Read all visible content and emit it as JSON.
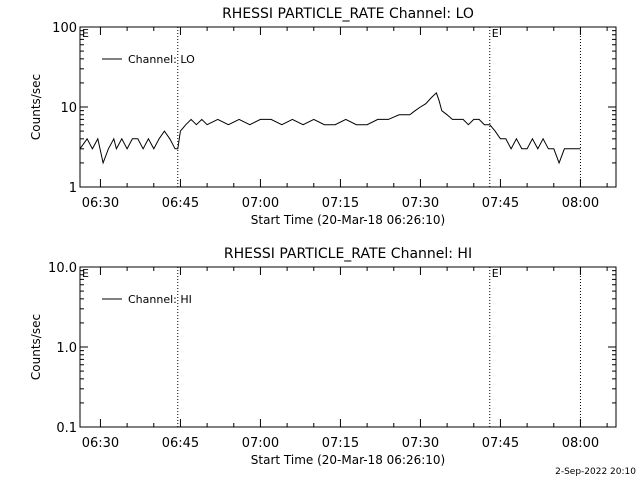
{
  "footer_text": "2-Sep-2022 20:10",
  "chart_data": [
    {
      "type": "line",
      "title": "RHESSI PARTICLE_RATE Channel: LO",
      "xlabel": "Start Time (20-Mar-18 06:26:10)",
      "ylabel": "Counts/sec",
      "yscale": "log",
      "ylim": [
        1,
        100
      ],
      "y_ticks": [
        "1",
        "10",
        "100"
      ],
      "xlim": [
        "06:26:10",
        "08:06:40"
      ],
      "x_ticks": [
        "06:30",
        "06:45",
        "07:00",
        "07:15",
        "07:30",
        "07:45",
        "08:00"
      ],
      "markers": [
        {
          "label": "E",
          "x": "06:26:10"
        },
        {
          "label": "E",
          "x": "07:43:00"
        }
      ],
      "vlines": [
        "06:44:30",
        "07:43:00",
        "08:00:00"
      ],
      "legend_position": "top-left",
      "series": [
        {
          "name": "Channel: LO",
          "x": [
            "06:26:10",
            "06:27:30",
            "06:28:30",
            "06:29:30",
            "06:30:30",
            "06:31:30",
            "06:32:30",
            "06:33:00",
            "06:34:00",
            "06:35:00",
            "06:36:00",
            "06:37:00",
            "06:38:00",
            "06:39:00",
            "06:40:00",
            "06:41:00",
            "06:42:00",
            "06:43:00",
            "06:44:00",
            "06:44:30",
            "06:45:00",
            "06:46:00",
            "06:47:00",
            "06:48:00",
            "06:49:00",
            "06:50:00",
            "06:52:00",
            "06:54:00",
            "06:56:00",
            "06:58:00",
            "07:00:00",
            "07:02:00",
            "07:04:00",
            "07:06:00",
            "07:08:00",
            "07:10:00",
            "07:12:00",
            "07:14:00",
            "07:16:00",
            "07:18:00",
            "07:20:00",
            "07:22:00",
            "07:24:00",
            "07:26:00",
            "07:28:00",
            "07:29:00",
            "07:30:00",
            "07:31:00",
            "07:32:00",
            "07:33:00",
            "07:33:30",
            "07:34:00",
            "07:35:00",
            "07:36:00",
            "07:37:00",
            "07:38:00",
            "07:39:00",
            "07:40:00",
            "07:41:00",
            "07:42:00",
            "07:43:00",
            "07:44:00",
            "07:45:00",
            "07:46:00",
            "07:47:00",
            "07:48:00",
            "07:49:00",
            "07:50:00",
            "07:51:00",
            "07:52:00",
            "07:53:00",
            "07:54:00",
            "07:55:00",
            "07:56:00",
            "07:57:00",
            "07:58:00",
            "07:59:00",
            "08:00:00"
          ],
          "y": [
            3,
            4,
            3,
            4,
            2,
            3,
            4,
            3,
            4,
            3,
            4,
            4,
            3,
            4,
            3,
            4,
            5,
            4,
            3,
            3,
            5,
            6,
            7,
            6,
            7,
            6,
            7,
            6,
            7,
            6,
            7,
            7,
            6,
            7,
            6,
            7,
            6,
            6,
            7,
            6,
            6,
            7,
            7,
            8,
            8,
            9,
            10,
            11,
            13,
            15,
            12,
            9,
            8,
            7,
            7,
            7,
            6,
            7,
            7,
            6,
            6,
            5,
            4,
            4,
            3,
            4,
            3,
            3,
            4,
            3,
            4,
            3,
            3,
            2,
            3,
            3,
            3,
            3
          ]
        }
      ]
    },
    {
      "type": "line",
      "title": "RHESSI PARTICLE_RATE Channel: HI",
      "xlabel": "Start Time (20-Mar-18 06:26:10)",
      "ylabel": "Counts/sec",
      "yscale": "log",
      "ylim": [
        0.1,
        10
      ],
      "y_ticks": [
        "0.1",
        "1.0",
        "10.0"
      ],
      "xlim": [
        "06:26:10",
        "08:06:40"
      ],
      "x_ticks": [
        "06:30",
        "06:45",
        "07:00",
        "07:15",
        "07:30",
        "07:45",
        "08:00"
      ],
      "markers": [
        {
          "label": "E",
          "x": "06:26:10"
        },
        {
          "label": "E",
          "x": "07:43:00"
        }
      ],
      "vlines": [
        "06:44:30",
        "07:43:00",
        "08:00:00"
      ],
      "legend_position": "top-left",
      "series": [
        {
          "name": "Channel: HI",
          "x": [],
          "y": []
        }
      ]
    }
  ]
}
